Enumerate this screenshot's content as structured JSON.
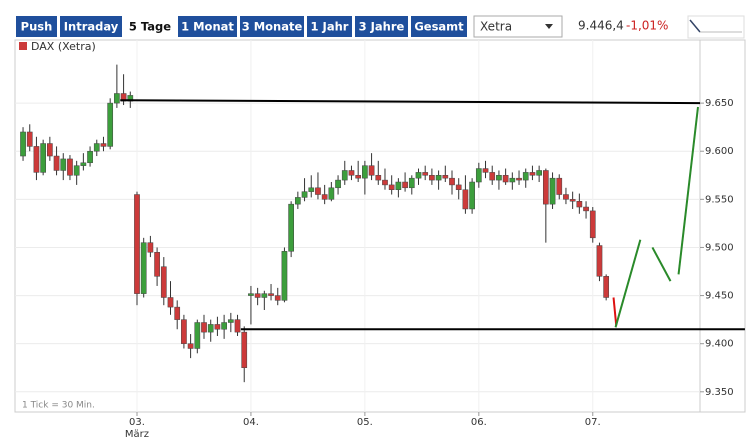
{
  "toolbar": {
    "buttons": [
      "Push",
      "Intraday",
      "5 Tage",
      "1 Monat",
      "3 Monate",
      "1 Jahr",
      "3 Jahre",
      "Gesamt"
    ],
    "selected": 2,
    "exchange": "Xetra",
    "last": "9.446,4",
    "change": "-1,01%"
  },
  "chart_data": {
    "type": "candlestick",
    "legend": "DAX (Xetra)",
    "note": "1 Tick = 30 Min.",
    "x_sublabel": "März",
    "up_color": "#3c9e3c",
    "down_color": "#cc3a3a",
    "categories": [
      null,
      null,
      null,
      null,
      null,
      null,
      null,
      null,
      null,
      null,
      null,
      null,
      null,
      null,
      null,
      null,
      null,
      "03.",
      null,
      null,
      null,
      null,
      null,
      null,
      null,
      null,
      null,
      null,
      null,
      null,
      null,
      null,
      null,
      null,
      "04.",
      null,
      null,
      null,
      null,
      null,
      null,
      null,
      null,
      null,
      null,
      null,
      null,
      null,
      null,
      null,
      null,
      "05.",
      null,
      null,
      null,
      null,
      null,
      null,
      null,
      null,
      null,
      null,
      null,
      null,
      null,
      null,
      null,
      null,
      "06.",
      null,
      null,
      null,
      null,
      null,
      null,
      null,
      null,
      null,
      null,
      null,
      null,
      null,
      null,
      null,
      null,
      "07.",
      null,
      null
    ],
    "open": [
      9595,
      9620,
      9605,
      9578,
      9608,
      9595,
      9580,
      9592,
      9575,
      9585,
      9588,
      9600,
      9608,
      9605,
      9650,
      9660,
      9652,
      9555,
      9452,
      9505,
      9495,
      9480,
      9448,
      9438,
      9425,
      9400,
      9395,
      9422,
      9412,
      9420,
      9415,
      9422,
      9425,
      9412,
      9450,
      9452,
      9448,
      9452,
      9450,
      9445,
      9496,
      9545,
      9552,
      9558,
      9562,
      9555,
      9550,
      9562,
      9570,
      9580,
      9575,
      9572,
      9585,
      9575,
      9570,
      9565,
      9560,
      9568,
      9562,
      9572,
      9578,
      9575,
      9570,
      9575,
      9572,
      9565,
      9560,
      9540,
      9568,
      9582,
      9578,
      9570,
      9575,
      9568,
      9572,
      9570,
      9578,
      9575,
      9580,
      9545,
      9572,
      9555,
      9550,
      9548,
      9542,
      9538,
      9502,
      9470
    ],
    "high": [
      9625,
      9628,
      9615,
      9612,
      9615,
      9605,
      9598,
      9596,
      9590,
      9598,
      9605,
      9612,
      9615,
      9655,
      9690,
      9680,
      9662,
      9558,
      9510,
      9512,
      9500,
      9490,
      9465,
      9445,
      9430,
      9410,
      9425,
      9430,
      9425,
      9428,
      9430,
      9432,
      9430,
      9418,
      9460,
      9458,
      9455,
      9462,
      9458,
      9500,
      9548,
      9558,
      9572,
      9575,
      9578,
      9565,
      9568,
      9575,
      9590,
      9585,
      9590,
      9590,
      9598,
      9590,
      9582,
      9575,
      9572,
      9578,
      9575,
      9582,
      9585,
      9582,
      9580,
      9585,
      9580,
      9572,
      9575,
      9572,
      9588,
      9590,
      9585,
      9580,
      9582,
      9578,
      9580,
      9582,
      9585,
      9585,
      9582,
      9578,
      9576,
      9562,
      9558,
      9556,
      9548,
      9542,
      9505,
      9472
    ],
    "low": [
      9590,
      9600,
      9570,
      9575,
      9590,
      9575,
      9570,
      9570,
      9565,
      9580,
      9584,
      9595,
      9600,
      9602,
      9645,
      9648,
      9645,
      9440,
      9448,
      9490,
      9460,
      9440,
      9430,
      9415,
      9395,
      9385,
      9390,
      9405,
      9402,
      9408,
      9405,
      9412,
      9408,
      9360,
      9420,
      9440,
      9435,
      9445,
      9440,
      9443,
      9490,
      9540,
      9548,
      9552,
      9550,
      9545,
      9548,
      9555,
      9565,
      9570,
      9568,
      9555,
      9570,
      9565,
      9560,
      9555,
      9552,
      9558,
      9555,
      9565,
      9570,
      9565,
      9560,
      9568,
      9555,
      9550,
      9535,
      9535,
      9562,
      9572,
      9565,
      9560,
      9565,
      9560,
      9565,
      9562,
      9570,
      9568,
      9505,
      9540,
      9550,
      9545,
      9540,
      9535,
      9530,
      9505,
      9465,
      9445
    ],
    "close": [
      9620,
      9605,
      9578,
      9608,
      9595,
      9580,
      9592,
      9575,
      9585,
      9588,
      9600,
      9608,
      9605,
      9650,
      9660,
      9652,
      9658,
      9452,
      9505,
      9495,
      9470,
      9448,
      9438,
      9425,
      9400,
      9395,
      9422,
      9412,
      9420,
      9415,
      9422,
      9425,
      9412,
      9375,
      9452,
      9448,
      9452,
      9450,
      9445,
      9496,
      9545,
      9552,
      9558,
      9562,
      9555,
      9550,
      9562,
      9570,
      9580,
      9575,
      9572,
      9585,
      9575,
      9570,
      9565,
      9560,
      9568,
      9562,
      9572,
      9578,
      9575,
      9570,
      9575,
      9572,
      9565,
      9560,
      9540,
      9568,
      9582,
      9578,
      9570,
      9575,
      9568,
      9572,
      9570,
      9578,
      9575,
      9580,
      9545,
      9572,
      9555,
      9550,
      9548,
      9542,
      9538,
      9510,
      9470,
      9448
    ],
    "xlim": [
      -1.2,
      101
    ],
    "ylim": [
      9329,
      9700
    ],
    "yticks": [
      {
        "value": 9350,
        "label": "9.350"
      },
      {
        "value": 9400,
        "label": "9.400"
      },
      {
        "value": 9450,
        "label": "9.450"
      },
      {
        "value": 9500,
        "label": "9.500"
      },
      {
        "value": 9550,
        "label": "9.550"
      },
      {
        "value": 9600,
        "label": "9.600"
      },
      {
        "value": 9650,
        "label": "9.650"
      }
    ],
    "drawings": [
      {
        "color": "#000000",
        "points": [
          [
            14.5,
            9653
          ],
          [
            101,
            9650
          ]
        ]
      },
      {
        "color": "#000000",
        "points": [
          [
            32.5,
            9415
          ],
          [
            107.7,
            9415
          ]
        ]
      },
      {
        "color": "#dd1111",
        "points": [
          [
            88.1,
            9448
          ],
          [
            88.5,
            9419
          ]
        ]
      },
      {
        "color": "#2a8a2a",
        "points": [
          [
            88.4,
            9417
          ],
          [
            92.1,
            9508
          ]
        ]
      },
      {
        "color": "#2a8a2a",
        "points": [
          [
            93.9,
            9500
          ],
          [
            96.6,
            9465
          ]
        ]
      },
      {
        "color": "#2a8a2a",
        "points": [
          [
            97.8,
            9472
          ],
          [
            100.7,
            9646
          ]
        ]
      }
    ]
  }
}
